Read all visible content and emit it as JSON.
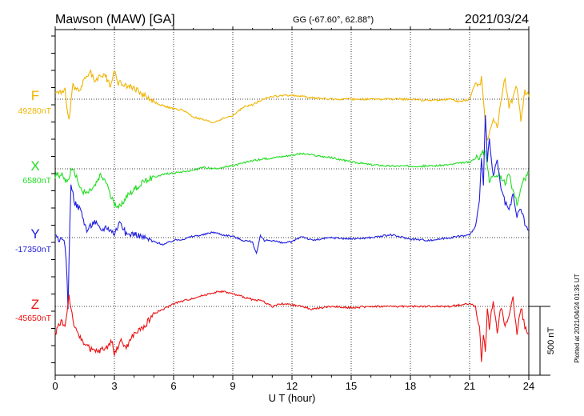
{
  "chart_data": {
    "type": "line",
    "station": "Mawson (MAW)  [GA]",
    "coords": "GG (-67.60°,  62.88°)",
    "date": "2021/03/24",
    "xlabel": "U T (hour)",
    "xlim": [
      0,
      24
    ],
    "xticks": [
      "0",
      "3",
      "6",
      "9",
      "12",
      "15",
      "18",
      "21",
      "24"
    ],
    "plotted_at": "Plotted at 2021/04/24 01:35 UT",
    "scale_label": "500 nT",
    "scale_nT": 500,
    "colors": {
      "F": "#f0b400",
      "X": "#22dd22",
      "Y": "#1f1fe0",
      "Z": "#ee1111"
    },
    "series": [
      {
        "name": "F",
        "baseline_label": "49280nT",
        "x": [
          0,
          0.3,
          0.5,
          0.6,
          0.7,
          0.9,
          1.2,
          1.5,
          1.8,
          2.0,
          2.2,
          2.5,
          2.8,
          3.0,
          3.2,
          3.5,
          4.0,
          4.5,
          5.0,
          5.5,
          6.0,
          6.5,
          7.0,
          7.5,
          8.0,
          8.5,
          9.0,
          9.5,
          10.0,
          10.5,
          11.0,
          12.0,
          13.0,
          14.0,
          15.0,
          16.0,
          17.0,
          18.0,
          19.0,
          20.0,
          20.5,
          21.0,
          21.3,
          21.5,
          21.6,
          21.7,
          21.8,
          21.9,
          22.0,
          22.2,
          22.4,
          22.6,
          22.8,
          23.0,
          23.2,
          23.4,
          23.6,
          23.8,
          24.0
        ],
        "values": [
          50,
          60,
          75,
          -80,
          -160,
          100,
          60,
          150,
          200,
          130,
          160,
          180,
          100,
          210,
          120,
          110,
          80,
          30,
          -20,
          -50,
          -70,
          -80,
          -130,
          -150,
          -170,
          -140,
          -120,
          -60,
          -40,
          0,
          20,
          30,
          10,
          0,
          0,
          0,
          0,
          0,
          -10,
          0,
          -20,
          0,
          120,
          100,
          150,
          0,
          -200,
          -300,
          -250,
          -150,
          -200,
          0,
          150,
          -50,
          0,
          100,
          -150,
          50,
          20
        ]
      },
      {
        "name": "X",
        "baseline_label": "6580nT",
        "x": [
          0,
          0.3,
          0.6,
          0.8,
          1.0,
          1.3,
          1.6,
          2.0,
          2.3,
          2.6,
          2.8,
          3.0,
          3.3,
          3.6,
          4.0,
          4.3,
          4.6,
          5.0,
          5.5,
          6.0,
          6.5,
          7.0,
          7.5,
          8.0,
          8.5,
          9.0,
          9.5,
          10.0,
          10.5,
          11.0,
          11.5,
          12.0,
          12.5,
          13.0,
          14.0,
          15.0,
          16.0,
          17.0,
          18.0,
          19.0,
          20.0,
          21.0,
          21.4,
          21.6,
          21.8,
          22.0,
          22.2,
          22.5,
          22.8,
          23.0,
          23.2,
          23.4,
          23.7,
          24.0
        ],
        "values": [
          -50,
          -40,
          -100,
          -20,
          -30,
          -150,
          -180,
          -130,
          -50,
          -100,
          -200,
          -250,
          -280,
          -200,
          -150,
          -120,
          -80,
          -60,
          -40,
          -30,
          -20,
          -10,
          10,
          0,
          10,
          20,
          40,
          60,
          70,
          80,
          90,
          100,
          110,
          100,
          80,
          50,
          30,
          20,
          20,
          20,
          30,
          50,
          80,
          100,
          150,
          -100,
          -30,
          -50,
          -100,
          -50,
          -150,
          -250,
          -100,
          -30
        ]
      },
      {
        "name": "Y",
        "baseline_label": "-17350nT",
        "x": [
          0,
          0.3,
          0.5,
          0.6,
          0.65,
          0.7,
          0.8,
          1.0,
          1.3,
          1.6,
          2.0,
          2.3,
          2.6,
          3.0,
          3.3,
          3.6,
          4.0,
          4.5,
          5.0,
          5.5,
          6.0,
          6.5,
          7.0,
          7.5,
          8.0,
          8.5,
          9.0,
          9.5,
          10.0,
          10.2,
          10.4,
          10.6,
          11.0,
          11.5,
          12.0,
          12.5,
          13.0,
          13.5,
          14.0,
          15.0,
          16.0,
          17.0,
          18.0,
          19.0,
          20.0,
          21.0,
          21.3,
          21.5,
          21.6,
          21.7,
          21.8,
          21.9,
          22.0,
          22.2,
          22.4,
          22.6,
          22.8,
          23.0,
          23.2,
          23.4,
          23.6,
          23.8,
          24.0
        ],
        "values": [
          0,
          -20,
          -50,
          -300,
          -500,
          -150,
          400,
          250,
          200,
          50,
          120,
          50,
          80,
          30,
          120,
          20,
          30,
          0,
          -30,
          -50,
          -20,
          -10,
          10,
          20,
          40,
          20,
          10,
          -20,
          -30,
          -120,
          10,
          -20,
          -20,
          -40,
          -30,
          10,
          -20,
          -10,
          0,
          -10,
          0,
          20,
          -10,
          -20,
          0,
          20,
          80,
          250,
          600,
          400,
          900,
          550,
          700,
          450,
          550,
          350,
          250,
          200,
          300,
          150,
          220,
          100,
          50
        ]
      },
      {
        "name": "Z",
        "baseline_label": "-45650nT",
        "x": [
          0,
          0.3,
          0.5,
          0.7,
          0.9,
          1.1,
          1.4,
          1.7,
          2.0,
          2.3,
          2.6,
          2.9,
          3.0,
          3.3,
          3.6,
          4.0,
          4.5,
          5.0,
          5.5,
          6.0,
          6.5,
          7.0,
          7.5,
          8.0,
          8.5,
          9.0,
          9.5,
          10.0,
          10.5,
          11.0,
          11.5,
          12.0,
          12.5,
          13.0,
          14.0,
          15.0,
          16.0,
          17.0,
          18.0,
          19.0,
          20.0,
          21.0,
          21.3,
          21.5,
          21.6,
          21.7,
          21.8,
          21.9,
          22.0,
          22.2,
          22.4,
          22.6,
          22.8,
          23.0,
          23.2,
          23.4,
          23.6,
          23.8,
          24.0
        ],
        "values": [
          -200,
          -100,
          -150,
          80,
          -100,
          -200,
          -250,
          -300,
          -330,
          -320,
          -300,
          -250,
          -350,
          -250,
          -300,
          -200,
          -150,
          -50,
          -20,
          20,
          40,
          60,
          80,
          100,
          110,
          90,
          70,
          50,
          40,
          0,
          20,
          10,
          0,
          -20,
          0,
          -10,
          0,
          0,
          0,
          0,
          0,
          20,
          0,
          -150,
          -400,
          -200,
          -350,
          0,
          -150,
          50,
          -200,
          0,
          -150,
          -50,
          50,
          -200,
          0,
          -150,
          -200
        ]
      }
    ]
  }
}
